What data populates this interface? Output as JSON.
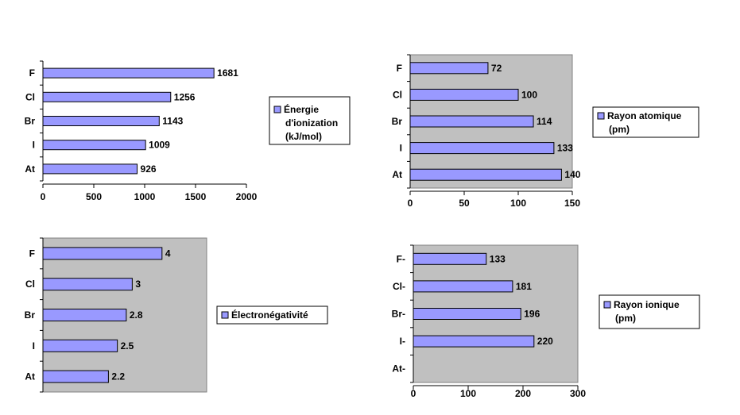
{
  "chart_data": [
    {
      "type": "bar",
      "orientation": "horizontal",
      "categories": [
        "F",
        "Cl",
        "Br",
        "I",
        "At"
      ],
      "series": [
        {
          "name": "Énergie d'ionization (kJ/mol)",
          "values": [
            1681,
            1256,
            1143,
            1009,
            926
          ]
        }
      ],
      "value_labels": [
        "1681",
        "1256",
        "1143",
        "1009",
        "926"
      ],
      "xlim": [
        0,
        2000
      ],
      "x_ticks": [
        "0",
        "500",
        "1000",
        "1500",
        "2000"
      ],
      "legend_lines": [
        "Énergie",
        "d'ionization",
        "(kJ/mol)"
      ],
      "legend_position": "right",
      "plot_background": false
    },
    {
      "type": "bar",
      "orientation": "horizontal",
      "categories": [
        "F",
        "Cl",
        "Br",
        "I",
        "At"
      ],
      "series": [
        {
          "name": "Rayon atomique (pm)",
          "values": [
            72,
            100,
            114,
            133,
            140
          ]
        }
      ],
      "value_labels": [
        "72",
        "100",
        "114",
        "133",
        "140"
      ],
      "xlim": [
        0,
        150
      ],
      "x_ticks": [
        "0",
        "50",
        "100",
        "150"
      ],
      "legend_lines": [
        "Rayon atomique",
        "(pm)"
      ],
      "legend_position": "right",
      "plot_background": true
    },
    {
      "type": "bar",
      "orientation": "horizontal",
      "categories": [
        "F",
        "Cl",
        "Br",
        "I",
        "At"
      ],
      "series": [
        {
          "name": "Électronégativité",
          "values": [
            4,
            3,
            2.8,
            2.5,
            2.2
          ]
        }
      ],
      "value_labels": [
        "4",
        "3",
        "2.8",
        "2.5",
        "2.2"
      ],
      "xlim": [
        0,
        5.5
      ],
      "x_ticks": [],
      "legend_lines": [
        "Électronégativité"
      ],
      "legend_position": "right",
      "plot_background": true
    },
    {
      "type": "bar",
      "orientation": "horizontal",
      "categories": [
        "F-",
        "Cl-",
        "Br-",
        "I-",
        "At-"
      ],
      "series": [
        {
          "name": "Rayon ionique (pm)",
          "values": [
            133,
            181,
            196,
            220,
            null
          ]
        }
      ],
      "value_labels": [
        "133",
        "181",
        "196",
        "220",
        ""
      ],
      "xlim": [
        0,
        300
      ],
      "x_ticks": [
        "0",
        "100",
        "200",
        "300"
      ],
      "legend_lines": [
        "Rayon ionique",
        "(pm)"
      ],
      "legend_position": "right",
      "plot_background": true
    }
  ],
  "colors": {
    "bar_fill": "#9999ff",
    "bar_stroke": "#000000",
    "plot_background": "#c0c0c0",
    "legend_border": "#000000"
  }
}
